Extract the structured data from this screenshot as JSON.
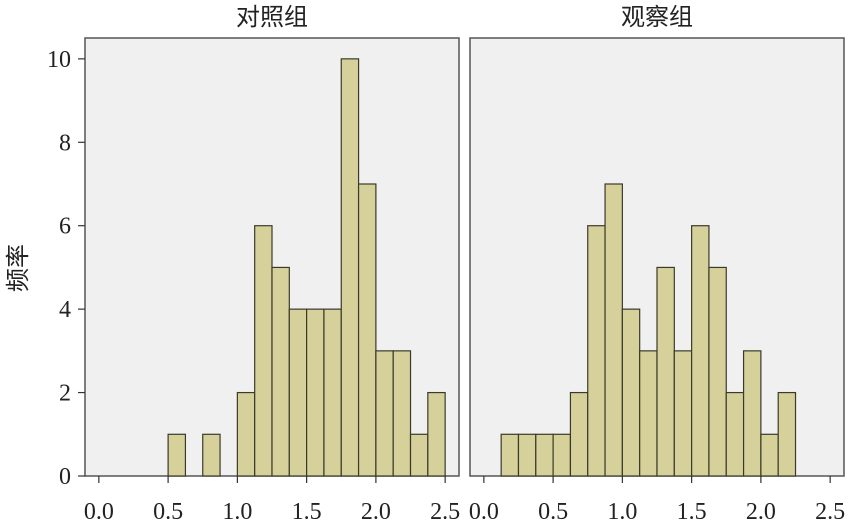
{
  "chart_data": {
    "type": "bar",
    "ylabel": "频率",
    "xlabel": "",
    "ylim": [
      0,
      10.5
    ],
    "xlim": [
      -0.1,
      2.6
    ],
    "x_ticks": [
      "0.0",
      "0.5",
      "1.0",
      "1.5",
      "2.0",
      "2.5"
    ],
    "y_ticks": [
      "0",
      "2",
      "4",
      "6",
      "8",
      "10"
    ],
    "bar_fill": "#d6d19a",
    "bar_stroke": "#3a3a2a",
    "panel_background": "#f0f0f0",
    "panel_border": "#555555",
    "grid": false,
    "panels": [
      {
        "title": "对照组",
        "bins": [
          {
            "x0": 0.5,
            "x1": 0.625,
            "count": 1
          },
          {
            "x0": 0.75,
            "x1": 0.875,
            "count": 1
          },
          {
            "x0": 1.0,
            "x1": 1.125,
            "count": 2
          },
          {
            "x0": 1.125,
            "x1": 1.25,
            "count": 6
          },
          {
            "x0": 1.25,
            "x1": 1.375,
            "count": 5
          },
          {
            "x0": 1.375,
            "x1": 1.5,
            "count": 4
          },
          {
            "x0": 1.5,
            "x1": 1.625,
            "count": 4
          },
          {
            "x0": 1.625,
            "x1": 1.75,
            "count": 4
          },
          {
            "x0": 1.75,
            "x1": 1.875,
            "count": 10
          },
          {
            "x0": 1.875,
            "x1": 2.0,
            "count": 7
          },
          {
            "x0": 2.0,
            "x1": 2.125,
            "count": 3
          },
          {
            "x0": 2.125,
            "x1": 2.25,
            "count": 3
          },
          {
            "x0": 2.25,
            "x1": 2.375,
            "count": 1
          },
          {
            "x0": 2.375,
            "x1": 2.5,
            "count": 2
          }
        ]
      },
      {
        "title": "观察组",
        "bins": [
          {
            "x0": 0.125,
            "x1": 0.25,
            "count": 1
          },
          {
            "x0": 0.25,
            "x1": 0.375,
            "count": 1
          },
          {
            "x0": 0.375,
            "x1": 0.5,
            "count": 1
          },
          {
            "x0": 0.5,
            "x1": 0.625,
            "count": 1
          },
          {
            "x0": 0.625,
            "x1": 0.75,
            "count": 2
          },
          {
            "x0": 0.75,
            "x1": 0.875,
            "count": 6
          },
          {
            "x0": 0.875,
            "x1": 1.0,
            "count": 7
          },
          {
            "x0": 1.0,
            "x1": 1.125,
            "count": 4
          },
          {
            "x0": 1.125,
            "x1": 1.25,
            "count": 3
          },
          {
            "x0": 1.25,
            "x1": 1.375,
            "count": 5
          },
          {
            "x0": 1.375,
            "x1": 1.5,
            "count": 3
          },
          {
            "x0": 1.5,
            "x1": 1.625,
            "count": 6
          },
          {
            "x0": 1.625,
            "x1": 1.75,
            "count": 5
          },
          {
            "x0": 1.75,
            "x1": 1.875,
            "count": 2
          },
          {
            "x0": 1.875,
            "x1": 2.0,
            "count": 3
          },
          {
            "x0": 2.0,
            "x1": 2.125,
            "count": 1
          },
          {
            "x0": 2.125,
            "x1": 2.25,
            "count": 2
          }
        ]
      }
    ]
  }
}
